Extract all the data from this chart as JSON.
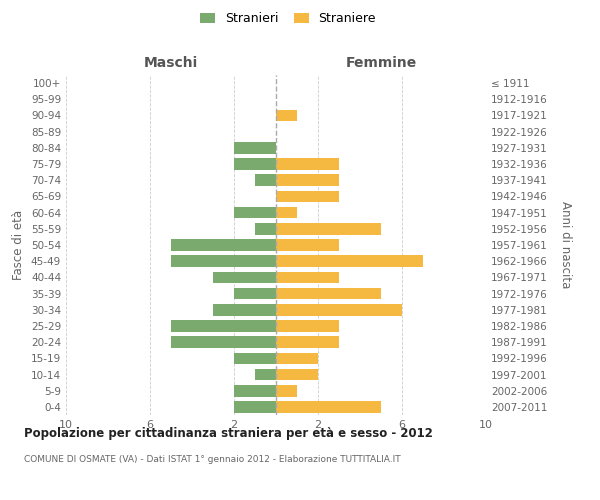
{
  "age_groups": [
    "100+",
    "95-99",
    "90-94",
    "85-89",
    "80-84",
    "75-79",
    "70-74",
    "65-69",
    "60-64",
    "55-59",
    "50-54",
    "45-49",
    "40-44",
    "35-39",
    "30-34",
    "25-29",
    "20-24",
    "15-19",
    "10-14",
    "5-9",
    "0-4"
  ],
  "birth_years": [
    "≤ 1911",
    "1912-1916",
    "1917-1921",
    "1922-1926",
    "1927-1931",
    "1932-1936",
    "1937-1941",
    "1942-1946",
    "1947-1951",
    "1952-1956",
    "1957-1961",
    "1962-1966",
    "1967-1971",
    "1972-1976",
    "1977-1981",
    "1982-1986",
    "1987-1991",
    "1992-1996",
    "1997-2001",
    "2002-2006",
    "2007-2011"
  ],
  "maschi": [
    0,
    0,
    0,
    0,
    2,
    2,
    1,
    0,
    2,
    1,
    5,
    5,
    3,
    2,
    3,
    5,
    5,
    2,
    1,
    2,
    2
  ],
  "femmine": [
    0,
    0,
    1,
    0,
    0,
    3,
    3,
    3,
    1,
    5,
    3,
    7,
    3,
    5,
    6,
    3,
    3,
    2,
    2,
    1,
    5
  ],
  "color_maschi": "#7aaa6e",
  "color_femmine": "#f5b942",
  "title": "Popolazione per cittadinanza straniera per età e sesso - 2012",
  "subtitle": "COMUNE DI OSMATE (VA) - Dati ISTAT 1° gennaio 2012 - Elaborazione TUTTITALIA.IT",
  "xlabel_left": "Maschi",
  "xlabel_right": "Femmine",
  "ylabel_left": "Fasce di età",
  "ylabel_right": "Anni di nascita",
  "legend_maschi": "Stranieri",
  "legend_femmine": "Straniere",
  "xlim": 10,
  "background_color": "#ffffff",
  "grid_color": "#cccccc",
  "dashed_line_color": "#aaaaaa"
}
